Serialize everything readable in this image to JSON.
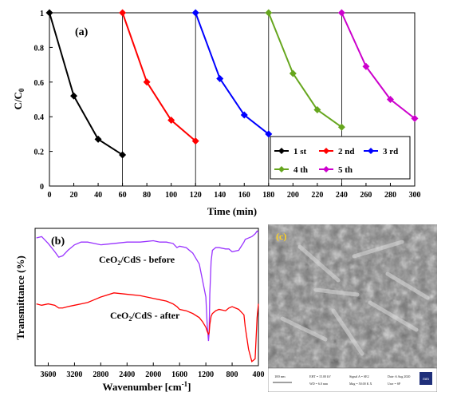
{
  "chart_data": [
    {
      "type": "line",
      "panel_label": "(a)",
      "xlabel": "Time (min)",
      "ylabel": "C/C0",
      "xlim": [
        0,
        300
      ],
      "ylim": [
        0,
        1
      ],
      "x_ticks": [
        "0",
        "20",
        "40",
        "60",
        "80",
        "100",
        "120",
        "140",
        "160",
        "180",
        "200",
        "220",
        "240",
        "260",
        "280",
        "300"
      ],
      "y_ticks": [
        "0",
        "0.2",
        "0.4",
        "0.6",
        "0.8",
        "1"
      ],
      "legend_position": "bottom-right",
      "grid": false,
      "cycle_dividers": [
        60,
        120,
        180,
        240
      ],
      "series": [
        {
          "name": "1 st",
          "color": "#000000",
          "marker": "diamond",
          "x": [
            0,
            20,
            40,
            60
          ],
          "y": [
            1.0,
            0.52,
            0.27,
            0.18
          ]
        },
        {
          "name": "2 nd",
          "color": "#ff0000",
          "marker": "diamond",
          "x": [
            60,
            80,
            100,
            120
          ],
          "y": [
            1.0,
            0.6,
            0.38,
            0.26
          ]
        },
        {
          "name": "3 rd",
          "color": "#0000ff",
          "marker": "diamond",
          "x": [
            120,
            140,
            160,
            180
          ],
          "y": [
            1.0,
            0.62,
            0.41,
            0.3
          ]
        },
        {
          "name": "4 th",
          "color": "#66a61e",
          "marker": "diamond",
          "x": [
            180,
            200,
            220,
            240
          ],
          "y": [
            1.0,
            0.65,
            0.44,
            0.34
          ]
        },
        {
          "name": "5 th",
          "color": "#cc00cc",
          "marker": "diamond",
          "x": [
            240,
            260,
            280,
            300
          ],
          "y": [
            1.0,
            0.69,
            0.5,
            0.39
          ]
        }
      ]
    },
    {
      "type": "line",
      "panel_label": "(b)",
      "xlabel": "Wavenumber [cm-1]",
      "ylabel": "Transmittance (%)",
      "xlim": [
        3800,
        400
      ],
      "x_ticks": [
        "3600",
        "3200",
        "2800",
        "2400",
        "2000",
        "1600",
        "1200",
        "800",
        "400"
      ],
      "grid": false,
      "series": [
        {
          "name": "CeO2/CdS - before",
          "color": "#9933ff",
          "x": [
            3780,
            3700,
            3600,
            3500,
            3440,
            3380,
            3300,
            3200,
            3100,
            3000,
            2900,
            2800,
            2600,
            2400,
            2200,
            2000,
            1900,
            1800,
            1700,
            1640,
            1600,
            1500,
            1400,
            1300,
            1250,
            1200,
            1180,
            1160,
            1150,
            1140,
            1120,
            1100,
            1050,
            1000,
            900,
            850,
            800,
            700,
            620,
            600,
            550,
            500,
            450,
            420,
            400
          ],
          "y": [
            0.93,
            0.94,
            0.89,
            0.83,
            0.79,
            0.8,
            0.84,
            0.88,
            0.9,
            0.9,
            0.89,
            0.88,
            0.89,
            0.9,
            0.9,
            0.91,
            0.9,
            0.9,
            0.89,
            0.86,
            0.87,
            0.86,
            0.82,
            0.74,
            0.62,
            0.5,
            0.3,
            0.18,
            0.24,
            0.52,
            0.76,
            0.84,
            0.86,
            0.86,
            0.85,
            0.85,
            0.83,
            0.84,
            0.9,
            0.92,
            0.93,
            0.94,
            0.96,
            0.98,
            0.97
          ]
        },
        {
          "name": "CeO2/CdS - after",
          "color": "#ff0000",
          "x": [
            3780,
            3700,
            3600,
            3500,
            3440,
            3380,
            3300,
            3200,
            3100,
            3000,
            2900,
            2800,
            2600,
            2400,
            2200,
            2000,
            1900,
            1800,
            1700,
            1640,
            1600,
            1500,
            1400,
            1300,
            1250,
            1200,
            1180,
            1160,
            1150,
            1140,
            1120,
            1100,
            1050,
            1000,
            900,
            850,
            800,
            700,
            620,
            600,
            550,
            500,
            450,
            420,
            400
          ],
          "y": [
            0.45,
            0.44,
            0.45,
            0.44,
            0.42,
            0.42,
            0.43,
            0.44,
            0.45,
            0.46,
            0.48,
            0.5,
            0.53,
            0.52,
            0.51,
            0.49,
            0.48,
            0.47,
            0.45,
            0.43,
            0.41,
            0.4,
            0.38,
            0.35,
            0.32,
            0.28,
            0.25,
            0.23,
            0.24,
            0.3,
            0.36,
            0.38,
            0.4,
            0.41,
            0.4,
            0.42,
            0.43,
            0.41,
            0.37,
            0.28,
            0.12,
            0.03,
            0.05,
            0.35,
            0.45
          ]
        }
      ]
    }
  ],
  "sem_image": {
    "panel_label": "(c)",
    "scale_bar": "100 nm",
    "info_cells": [
      "EHT = 15.00 kV",
      "Signal A = SE2",
      "Date :6 Aug 2020",
      "WD = 6.0 mm",
      "Mag = 50.00 K X",
      "User = SP"
    ],
    "logo": "mm"
  }
}
